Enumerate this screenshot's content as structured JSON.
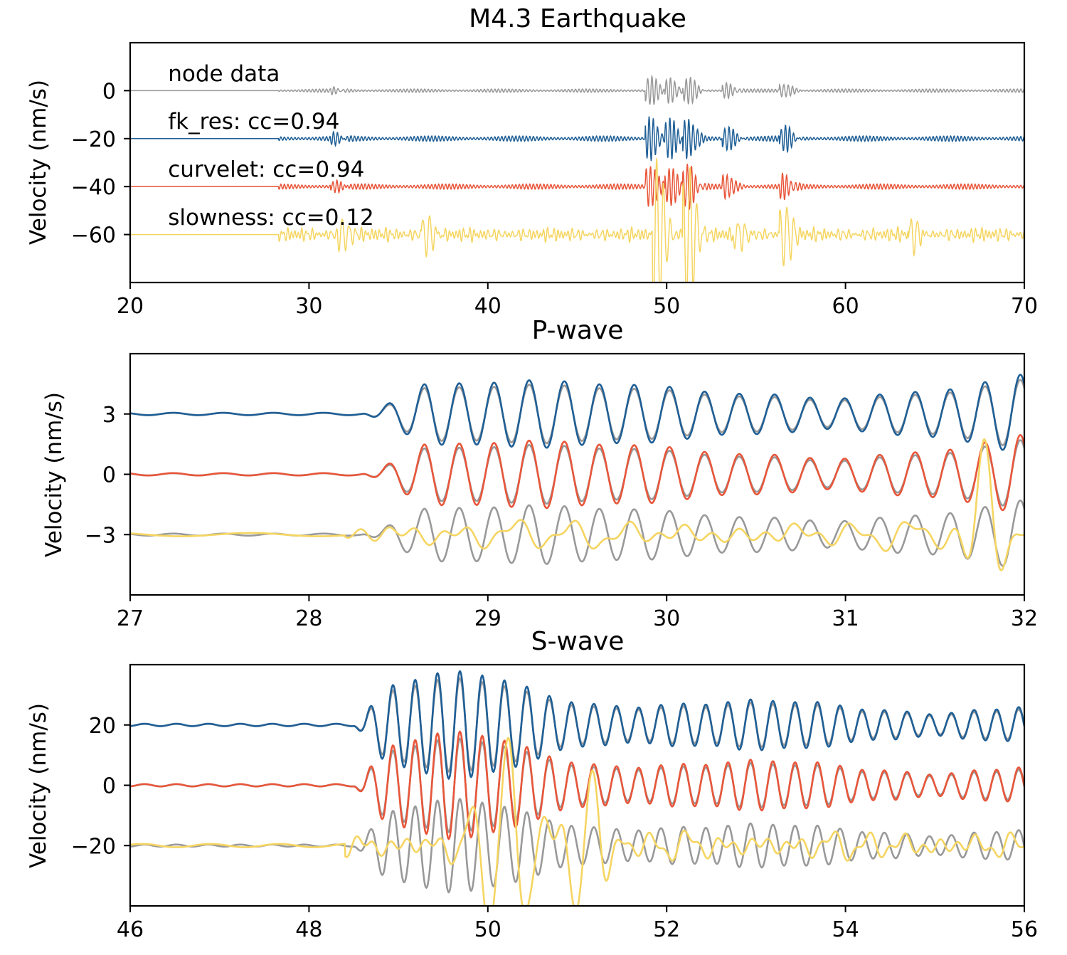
{
  "colors": {
    "node": "#999999",
    "fk_res": "#1f5f96",
    "curvelet": "#e8563a",
    "slowness": "#f5d561"
  },
  "chart_data": [
    {
      "type": "line",
      "title": "M4.3 Earthquake",
      "ylabel": "Velocity (nm/s)",
      "xlabel": "",
      "xlim": [
        20,
        70
      ],
      "ylim": [
        -80,
        20
      ],
      "xticks": [
        20,
        30,
        40,
        50,
        60,
        70
      ],
      "yticks": [
        0,
        -20,
        -40,
        -60
      ],
      "ytick_labels": [
        "0",
        "−20",
        "−40",
        "−60"
      ],
      "annotations": [
        {
          "text": "node data",
          "x": 22,
          "y": 7
        },
        {
          "text": "fk_res: cc=0.94",
          "x": 22,
          "y": -13
        },
        {
          "text": "curvelet: cc=0.94",
          "x": 22,
          "y": -33
        },
        {
          "text": "slowness: cc=0.12",
          "x": 22,
          "y": -53
        }
      ],
      "series": [
        {
          "key": "node",
          "offset": 0,
          "noise_onset": 28.3,
          "events": [
            {
              "t": 49.1,
              "a": 6
            },
            {
              "t": 50.2,
              "a": 5
            },
            {
              "t": 51.2,
              "a": 6
            },
            {
              "t": 53.4,
              "a": 3
            },
            {
              "t": 56.6,
              "a": 3
            },
            {
              "t": 31.5,
              "a": 1.2
            }
          ]
        },
        {
          "key": "fk_res",
          "offset": -20,
          "noise_onset": 28.3,
          "events": [
            {
              "t": 49.1,
              "a": 9
            },
            {
              "t": 50.2,
              "a": 8
            },
            {
              "t": 51.2,
              "a": 9
            },
            {
              "t": 53.4,
              "a": 5
            },
            {
              "t": 56.6,
              "a": 5
            },
            {
              "t": 31.5,
              "a": 2
            }
          ]
        },
        {
          "key": "curvelet",
          "offset": -40,
          "noise_onset": 28.3,
          "events": [
            {
              "t": 49.1,
              "a": 9
            },
            {
              "t": 50.2,
              "a": 8
            },
            {
              "t": 51.2,
              "a": 9
            },
            {
              "t": 53.4,
              "a": 5
            },
            {
              "t": 56.6,
              "a": 5
            },
            {
              "t": 31.5,
              "a": 2
            }
          ]
        },
        {
          "key": "slowness",
          "offset": -60,
          "noise_onset": 28.3,
          "events": [
            {
              "t": 49.5,
              "a": 30
            },
            {
              "t": 51.2,
              "a": 30
            },
            {
              "t": 56.6,
              "a": 14
            },
            {
              "t": 31.9,
              "a": 6
            },
            {
              "t": 36.6,
              "a": 9
            },
            {
              "t": 54.0,
              "a": 7
            },
            {
              "t": 63.8,
              "a": 7
            }
          ]
        }
      ]
    },
    {
      "type": "line",
      "title": "P-wave",
      "ylabel": "Velocity (nm/s)",
      "xlabel": "",
      "xlim": [
        27,
        32
      ],
      "ylim": [
        -6,
        6
      ],
      "xticks": [
        27,
        28,
        29,
        30,
        31,
        32
      ],
      "yticks": [
        3,
        0,
        -3
      ],
      "ytick_labels": [
        "3",
        "0",
        "−3"
      ],
      "onset": 28.3,
      "freq": 5.1,
      "reference_offsets": [
        3,
        0,
        -3
      ],
      "series": [
        {
          "key": "fk_res",
          "offset": 3,
          "gain": 1.15
        },
        {
          "key": "curvelet",
          "offset": 0,
          "gain": 1.15
        },
        {
          "key": "slowness",
          "offset": -3,
          "gain": 1.0
        }
      ]
    },
    {
      "type": "line",
      "title": "S-wave",
      "ylabel": "Velocity (nm/s)",
      "xlabel": "",
      "xlim": [
        46,
        56
      ],
      "ylim": [
        -40,
        40
      ],
      "xticks": [
        46,
        48,
        50,
        52,
        54,
        56
      ],
      "yticks": [
        20,
        0,
        -20
      ],
      "ytick_labels": [
        "20",
        "0",
        "−20"
      ],
      "onset": 48.5,
      "freq": 4.0,
      "reference_offsets": [
        20,
        0,
        -20
      ],
      "series": [
        {
          "key": "fk_res",
          "offset": 20,
          "gain": 1.15
        },
        {
          "key": "curvelet",
          "offset": 0,
          "gain": 1.15
        },
        {
          "key": "slowness",
          "offset": -20,
          "gain": 1.0
        }
      ]
    }
  ]
}
